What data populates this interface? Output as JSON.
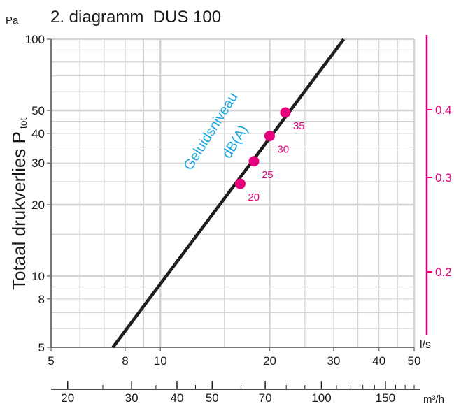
{
  "header": {
    "unit_left": "Pa",
    "title": "2. diagramm  DUS 100"
  },
  "colors": {
    "grid": "#d4d4d4",
    "axis": "#777777",
    "line": "#1f1f1f",
    "points": "#e6007e",
    "noise_label": "#1ba6dd",
    "text": "#1a1a1a"
  },
  "chart_data": {
    "type": "line",
    "title": "2. diagramm  DUS 100",
    "ylabel_main": "Totaal drukverlies P",
    "ylabel_sub": "tot",
    "y_unit": "Pa",
    "xlabel_primary": "l/s",
    "xlabel_secondary": "m³/h",
    "x_scale": "log",
    "y_scale": "log",
    "xlim": [
      5,
      50
    ],
    "ylim": [
      5,
      100
    ],
    "grid": true,
    "x_ticks": [
      "5",
      "8",
      "10",
      "20",
      "30",
      "40",
      "50"
    ],
    "y_ticks": [
      "5",
      "8",
      "10",
      "20",
      "30",
      "40",
      "50",
      "100"
    ],
    "x_secondary_ticks": [
      "20",
      "30",
      "40",
      "50",
      "70",
      "100",
      "150"
    ],
    "right_axis_ticks": [
      "0.4",
      "0.3",
      "0.2"
    ],
    "series": [
      {
        "x": [
          7.4,
          32
        ],
        "y": [
          5,
          100
        ]
      }
    ],
    "noise_level_label_line1": "Geluidsniveau",
    "noise_level_label_line2": "dB(A)",
    "noise_points": [
      {
        "label": "20",
        "x": 16.6,
        "y": 24.5
      },
      {
        "label": "25",
        "x": 18.1,
        "y": 30.5
      },
      {
        "label": "30",
        "x": 20.0,
        "y": 39.0
      },
      {
        "label": "35",
        "x": 22.1,
        "y": 49.0
      }
    ]
  }
}
